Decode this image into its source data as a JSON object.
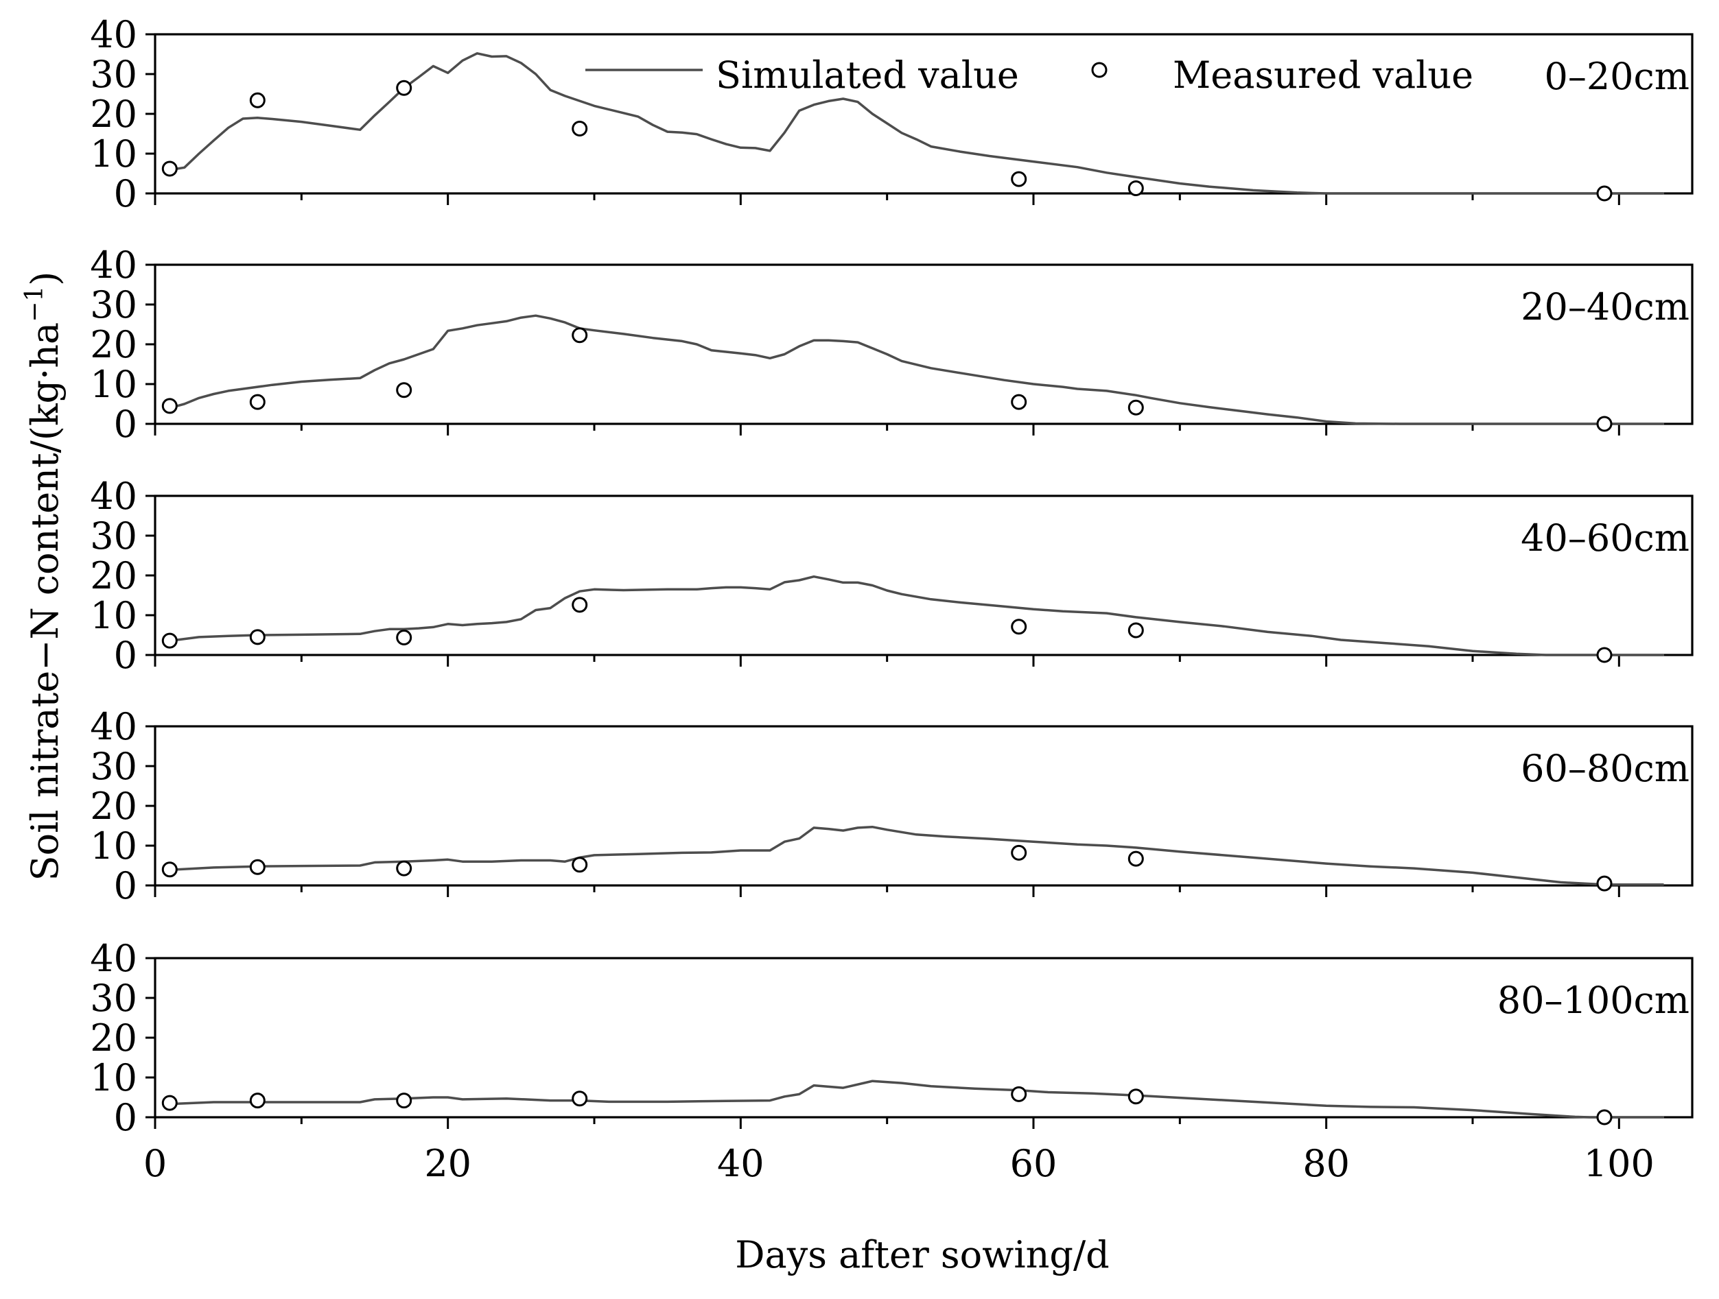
{
  "chart_data": {
    "type": "line",
    "xlabel": "Days after sowing/d",
    "ylabel": {
      "text": "Soil nitrate−N content/(kg·ha",
      "superscript": "−1",
      "suffix": ")"
    },
    "series": [
      {
        "name": "Simulated value",
        "type": "line"
      },
      {
        "name": "Measured value",
        "type": "scatter"
      }
    ],
    "legend_placement": "top",
    "grid": false,
    "xlim": [
      0,
      105
    ],
    "xticks": [
      0,
      20,
      40,
      60,
      80,
      100
    ],
    "xminor_step": 10,
    "ylim": [
      0,
      40
    ],
    "yticks": [
      0,
      10,
      20,
      30,
      40
    ],
    "colors": {
      "simulated": "#4d4d4d",
      "measured_edge": "#000000",
      "measured_fill": "#ffffff",
      "axes": "#000000"
    },
    "panels": [
      {
        "depth": "0–20cm",
        "simulated": {
          "x": [
            1.5,
            2,
            3,
            4,
            5,
            6,
            7,
            8,
            10,
            12,
            14,
            15,
            16,
            17,
            18,
            19,
            20,
            21,
            22,
            23,
            24,
            25,
            26,
            27,
            28,
            30,
            32,
            33,
            34,
            35,
            36,
            37,
            38,
            39,
            40,
            41,
            42,
            43,
            44,
            45,
            46,
            47,
            48,
            49,
            50,
            51,
            52,
            53,
            55,
            57,
            60,
            63,
            65,
            67,
            70,
            72,
            75,
            78,
            80,
            103
          ],
          "y": [
            6.2,
            6.5,
            10,
            13.3,
            16.5,
            18.8,
            19,
            18.7,
            18,
            17,
            16,
            19.6,
            23,
            26.5,
            29.2,
            32,
            30.3,
            33.4,
            35.2,
            34.4,
            34.5,
            32.8,
            30,
            26,
            24.5,
            22,
            20.2,
            19.3,
            17.2,
            15.5,
            15.3,
            14.9,
            13.6,
            12.4,
            11.5,
            11.4,
            10.7,
            15.3,
            20.8,
            22.3,
            23.2,
            23.8,
            23,
            20,
            17.6,
            15.2,
            13.6,
            11.8,
            10.5,
            9.4,
            8,
            6.6,
            5.2,
            4.1,
            2.5,
            1.7,
            0.8,
            0.2,
            0,
            0
          ]
        },
        "measured": {
          "x": [
            1,
            7,
            17,
            29,
            59,
            67,
            99
          ],
          "y": [
            6.2,
            23.4,
            26.5,
            16.3,
            3.6,
            1.3,
            0
          ]
        }
      },
      {
        "depth": "20–40cm",
        "simulated": {
          "x": [
            1.5,
            2,
            3,
            4,
            5,
            6,
            8,
            10,
            12,
            14,
            15,
            16,
            17,
            18,
            19,
            20,
            21,
            22,
            23,
            24,
            25,
            26,
            27,
            28,
            29,
            30,
            32,
            34,
            36,
            37,
            38,
            40,
            41,
            42,
            43,
            44,
            45,
            46,
            47,
            48,
            49,
            50,
            51,
            53,
            55,
            58,
            60,
            62,
            63,
            65,
            67,
            68,
            70,
            72,
            74,
            76,
            78,
            80,
            82,
            85,
            103
          ],
          "y": [
            4.5,
            5,
            6.5,
            7.5,
            8.3,
            8.8,
            9.8,
            10.6,
            11.1,
            11.5,
            13.5,
            15.2,
            16.2,
            17.5,
            18.8,
            23.4,
            24,
            24.8,
            25.3,
            25.8,
            26.7,
            27.2,
            26.5,
            25.5,
            24,
            23.5,
            22.6,
            21.6,
            20.8,
            20,
            18.5,
            17.7,
            17.3,
            16.5,
            17.5,
            19.5,
            21,
            21,
            20.8,
            20.5,
            19,
            17.5,
            15.8,
            14,
            12.8,
            11,
            10,
            9.3,
            8.8,
            8.3,
            7.2,
            6.5,
            5.2,
            4.2,
            3.3,
            2.4,
            1.6,
            0.6,
            0.1,
            0,
            0
          ]
        },
        "measured": {
          "x": [
            1,
            7,
            17,
            29,
            59,
            67,
            99
          ],
          "y": [
            4.5,
            5.5,
            8.5,
            22.3,
            5.5,
            4.1,
            0
          ]
        }
      },
      {
        "depth": "40–60cm",
        "simulated": {
          "x": [
            1.5,
            3,
            5,
            7,
            10,
            14,
            15,
            16,
            17,
            18,
            19,
            20,
            21,
            22,
            23,
            24,
            25,
            26,
            27,
            28,
            29,
            30,
            32,
            35,
            37,
            38,
            39,
            40,
            41,
            42,
            43,
            44,
            45,
            46,
            47,
            48,
            49,
            50,
            51,
            53,
            55,
            58,
            60,
            62,
            65,
            67,
            70,
            73,
            76,
            79,
            81,
            84,
            87,
            90,
            93,
            95,
            103
          ],
          "y": [
            3.8,
            4.5,
            4.8,
            5,
            5.1,
            5.3,
            6,
            6.5,
            6.5,
            6.7,
            7,
            7.8,
            7.5,
            7.8,
            8,
            8.3,
            9,
            11.3,
            11.8,
            14.3,
            16,
            16.5,
            16.3,
            16.5,
            16.5,
            16.8,
            17,
            17,
            16.8,
            16.5,
            18.3,
            18.8,
            19.7,
            19,
            18.2,
            18.2,
            17.5,
            16.2,
            15.3,
            14,
            13.2,
            12.2,
            11.5,
            11,
            10.5,
            9.5,
            8.3,
            7.2,
            5.8,
            4.8,
            3.8,
            3,
            2.2,
            1,
            0.3,
            0,
            0
          ]
        },
        "measured": {
          "x": [
            1,
            7,
            17,
            29,
            59,
            67,
            99
          ],
          "y": [
            3.6,
            4.5,
            4.4,
            12.6,
            7.1,
            6.2,
            0
          ]
        }
      },
      {
        "depth": "60–80cm",
        "simulated": {
          "x": [
            1.5,
            4,
            7,
            10,
            14,
            15,
            17,
            19,
            20,
            21,
            23,
            25,
            27,
            28,
            29,
            30,
            33,
            36,
            38,
            40,
            42,
            43,
            44,
            45,
            46,
            47,
            48,
            49,
            50,
            52,
            54,
            57,
            60,
            63,
            65,
            67,
            70,
            75,
            80,
            83,
            86,
            90,
            93,
            96,
            99,
            103
          ],
          "y": [
            4,
            4.5,
            4.8,
            4.9,
            5,
            5.8,
            6,
            6.3,
            6.5,
            6,
            6,
            6.3,
            6.3,
            6,
            7,
            7.6,
            7.9,
            8.2,
            8.3,
            8.8,
            8.8,
            11,
            11.8,
            14.5,
            14.2,
            13.8,
            14.5,
            14.7,
            14,
            12.8,
            12.3,
            11.7,
            11,
            10.3,
            10,
            9.5,
            8.5,
            7,
            5.5,
            4.8,
            4.3,
            3.2,
            2,
            0.8,
            0.2,
            0.2
          ]
        },
        "measured": {
          "x": [
            1,
            7,
            17,
            29,
            59,
            67,
            99
          ],
          "y": [
            4,
            4.6,
            4.3,
            5.2,
            8.2,
            6.7,
            0.5
          ]
        }
      },
      {
        "depth": "80–100cm",
        "simulated": {
          "x": [
            1.5,
            4,
            7,
            10,
            14,
            15,
            17,
            19,
            20,
            21,
            24,
            27,
            29,
            31,
            35,
            39,
            42,
            43,
            44,
            45,
            47,
            49,
            51,
            53,
            56,
            59,
            61,
            64,
            67,
            70,
            75,
            80,
            83,
            86,
            90,
            94,
            97,
            98,
            103
          ],
          "y": [
            3.4,
            3.8,
            3.8,
            3.8,
            3.8,
            4.5,
            4.7,
            5,
            5,
            4.5,
            4.7,
            4.2,
            4.2,
            3.9,
            3.9,
            4.1,
            4.2,
            5.2,
            5.8,
            8,
            7.4,
            9.1,
            8.6,
            7.8,
            7.2,
            6.8,
            6.3,
            6,
            5.5,
            4.9,
            3.9,
            2.9,
            2.6,
            2.5,
            1.8,
            0.8,
            0.1,
            0,
            0
          ]
        },
        "measured": {
          "x": [
            1,
            7,
            17,
            29,
            59,
            67,
            99
          ],
          "y": [
            3.6,
            4.2,
            4.2,
            4.7,
            5.8,
            5.2,
            0
          ]
        }
      }
    ]
  }
}
